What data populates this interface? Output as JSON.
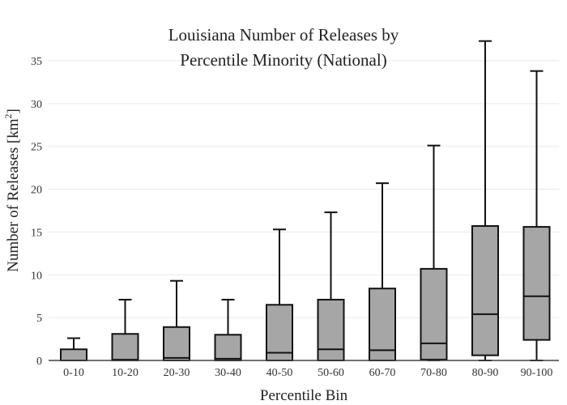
{
  "chart_data": {
    "type": "box",
    "title_lines": [
      "Louisiana Number of Releases by",
      "Percentile Minority (National)"
    ],
    "xlabel": "Percentile Bin",
    "ylabel_main": "Number of Releases  [km",
    "ylabel_sup": "2",
    "ylabel_end": "]",
    "ylim": [
      0,
      38.5
    ],
    "yticks": [
      0,
      5,
      10,
      15,
      20,
      25,
      30,
      35
    ],
    "grid": true,
    "box_color": "#a6a6a6",
    "categories": [
      "0-10",
      "10-20",
      "20-30",
      "30-40",
      "40-50",
      "50-60",
      "60-70",
      "70-80",
      "80-90",
      "90-100"
    ],
    "boxes": [
      {
        "min": 0,
        "q1": 0,
        "median": 0,
        "q3": 1.3,
        "max": 2.6
      },
      {
        "min": 0,
        "q1": 0,
        "median": 0.1,
        "q3": 3.1,
        "max": 7.1
      },
      {
        "min": 0,
        "q1": 0,
        "median": 0.3,
        "q3": 3.9,
        "max": 9.3
      },
      {
        "min": 0,
        "q1": 0,
        "median": 0.2,
        "q3": 3.0,
        "max": 7.1
      },
      {
        "min": 0,
        "q1": 0,
        "median": 0.9,
        "q3": 6.5,
        "max": 15.3
      },
      {
        "min": 0,
        "q1": 0,
        "median": 1.3,
        "q3": 7.1,
        "max": 17.3
      },
      {
        "min": 0,
        "q1": 0,
        "median": 1.2,
        "q3": 8.4,
        "max": 20.7
      },
      {
        "min": 0,
        "q1": 0.1,
        "median": 2.0,
        "q3": 10.7,
        "max": 25.1
      },
      {
        "min": 0,
        "q1": 0.6,
        "median": 5.4,
        "q3": 15.7,
        "max": 37.3
      },
      {
        "min": 0,
        "q1": 2.4,
        "median": 7.5,
        "q3": 15.6,
        "max": 33.8
      }
    ]
  }
}
